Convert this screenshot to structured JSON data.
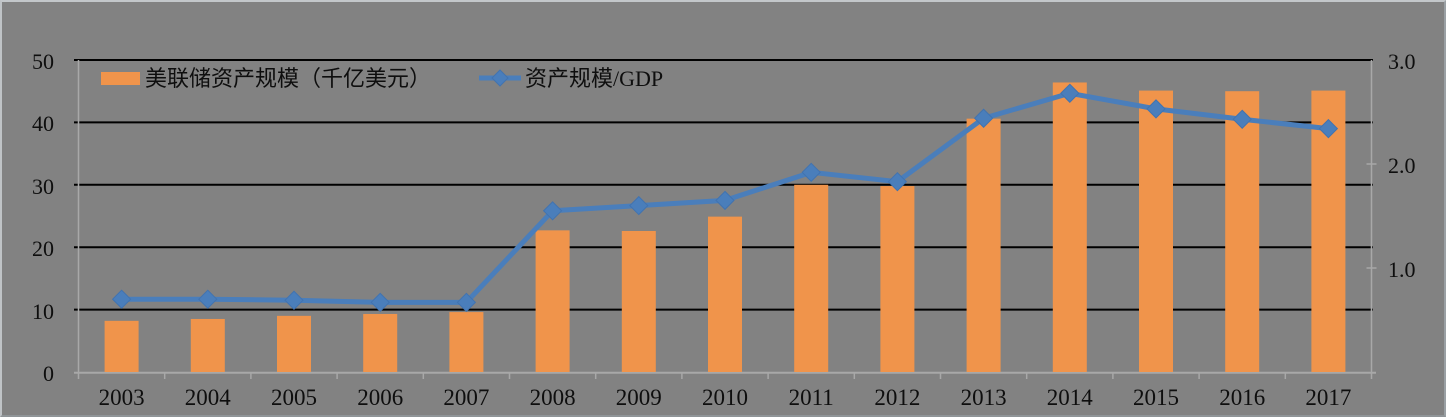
{
  "chart": {
    "background_color": "#828282",
    "gridline_color": "#000000",
    "axis_color": "#A8A8A8",
    "text_color": "#0E0E0E",
    "bar_color": "#F0944B",
    "line_color": "#4A7EBB",
    "marker_edge_color": "#4173B0"
  },
  "chart_data": {
    "type": "bar+line",
    "title": "",
    "categories": [
      "2003",
      "2004",
      "2005",
      "2006",
      "2007",
      "2008",
      "2009",
      "2010",
      "2011",
      "2012",
      "2013",
      "2014",
      "2015",
      "2016",
      "2017"
    ],
    "series": [
      {
        "name": "美联储资产规模（千亿美元）",
        "type": "bar",
        "axis": "left",
        "color": "#F0944B",
        "values": [
          8.2,
          8.5,
          9.0,
          9.3,
          9.6,
          22.7,
          22.6,
          24.9,
          30.0,
          29.8,
          40.6,
          46.4,
          45.1,
          45.0,
          45.1
        ]
      },
      {
        "name": "资产规模/GDP",
        "type": "line",
        "axis": "right",
        "color": "#4A7EBB",
        "marker": "diamond",
        "values": [
          0.7,
          0.7,
          0.69,
          0.67,
          0.67,
          1.55,
          1.6,
          1.65,
          1.92,
          1.83,
          2.44,
          2.68,
          2.53,
          2.43,
          2.34
        ]
      }
    ],
    "left_axis": {
      "min": 0,
      "max": 50,
      "tick_values": [
        0,
        10,
        20,
        30,
        40,
        50
      ],
      "tick_labels": [
        "0",
        "10",
        "20",
        "30",
        "40",
        "50"
      ]
    },
    "right_axis": {
      "min": 0,
      "max": 3,
      "tick_values": [
        1,
        2,
        3
      ],
      "tick_labels": [
        "1.0",
        "2.0",
        "3.0"
      ]
    },
    "legend_position": "top-left-inside",
    "grid": "horizontal-black"
  }
}
